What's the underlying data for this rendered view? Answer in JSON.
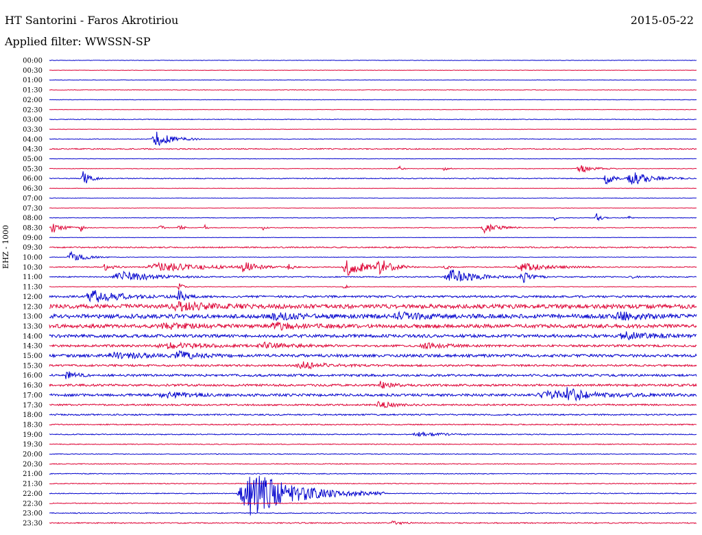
{
  "header": {
    "station": "HT Santorini - Faros Akrotiriou",
    "date": "2015-05-22",
    "filter": "Applied filter: WWSSN-SP"
  },
  "chart_data": {
    "type": "line",
    "title": "HT Santorini - Faros Akrotiriou",
    "ylabel": "EHZ - 1000",
    "colors": [
      "#0000cc",
      "#dd0033"
    ],
    "rows": [
      {
        "label": "00:00",
        "color": 0,
        "noise": 0.3,
        "events": []
      },
      {
        "label": "00:30",
        "color": 1,
        "noise": 0.3,
        "events": []
      },
      {
        "label": "01:00",
        "color": 0,
        "noise": 0.3,
        "events": []
      },
      {
        "label": "01:30",
        "color": 1,
        "noise": 0.4,
        "events": []
      },
      {
        "label": "02:00",
        "color": 0,
        "noise": 0.3,
        "events": []
      },
      {
        "label": "02:30",
        "color": 1,
        "noise": 0.3,
        "events": []
      },
      {
        "label": "03:00",
        "color": 0,
        "noise": 0.5,
        "events": []
      },
      {
        "label": "03:30",
        "color": 1,
        "noise": 0.3,
        "events": []
      },
      {
        "label": "04:00",
        "color": 0,
        "noise": 0.4,
        "events": [
          [
            0.165,
            0.025,
            11
          ]
        ]
      },
      {
        "label": "04:30",
        "color": 1,
        "noise": 0.8,
        "events": []
      },
      {
        "label": "05:00",
        "color": 0,
        "noise": 0.3,
        "events": []
      },
      {
        "label": "05:30",
        "color": 1,
        "noise": 0.4,
        "events": [
          [
            0.54,
            0.004,
            8
          ],
          [
            0.61,
            0.006,
            3
          ],
          [
            0.82,
            0.02,
            6
          ]
        ]
      },
      {
        "label": "06:00",
        "color": 0,
        "noise": 0.6,
        "events": [
          [
            0.052,
            0.01,
            11
          ],
          [
            0.86,
            0.01,
            9
          ],
          [
            0.9,
            0.03,
            10
          ]
        ]
      },
      {
        "label": "06:30",
        "color": 1,
        "noise": 0.3,
        "events": []
      },
      {
        "label": "07:00",
        "color": 0,
        "noise": 0.3,
        "events": []
      },
      {
        "label": "07:30",
        "color": 1,
        "noise": 0.3,
        "events": []
      },
      {
        "label": "08:00",
        "color": 0,
        "noise": 0.4,
        "events": [
          [
            0.78,
            0.003,
            5
          ],
          [
            0.845,
            0.006,
            9
          ],
          [
            0.895,
            0.003,
            5
          ]
        ]
      },
      {
        "label": "08:30",
        "color": 1,
        "noise": 0.5,
        "events": [
          [
            0.005,
            0.015,
            8
          ],
          [
            0.048,
            0.004,
            6
          ],
          [
            0.17,
            0.004,
            6
          ],
          [
            0.2,
            0.005,
            7
          ],
          [
            0.24,
            0.003,
            6
          ],
          [
            0.33,
            0.003,
            4
          ],
          [
            0.672,
            0.02,
            8
          ]
        ]
      },
      {
        "label": "09:00",
        "color": 0,
        "noise": 0.3,
        "events": []
      },
      {
        "label": "09:30",
        "color": 1,
        "noise": 0.9,
        "events": []
      },
      {
        "label": "10:00",
        "color": 0,
        "noise": 0.4,
        "events": [
          [
            0.033,
            0.02,
            8
          ]
        ]
      },
      {
        "label": "10:30",
        "color": 1,
        "noise": 0.7,
        "events": [
          [
            0.085,
            0.012,
            5
          ],
          [
            0.17,
            0.08,
            6
          ],
          [
            0.3,
            0.015,
            8
          ],
          [
            0.37,
            0.005,
            6
          ],
          [
            0.46,
            0.03,
            12
          ],
          [
            0.51,
            0.02,
            10
          ],
          [
            0.61,
            0.004,
            9
          ],
          [
            0.73,
            0.04,
            6
          ]
        ]
      },
      {
        "label": "11:00",
        "color": 0,
        "noise": 0.8,
        "events": [
          [
            0.11,
            0.045,
            8
          ],
          [
            0.62,
            0.035,
            11
          ],
          [
            0.73,
            0.015,
            9
          ],
          [
            0.9,
            0.004,
            5
          ]
        ]
      },
      {
        "label": "11:30",
        "color": 1,
        "noise": 0.4,
        "events": [
          [
            0.2,
            0.005,
            7
          ],
          [
            0.455,
            0.004,
            5
          ]
        ]
      },
      {
        "label": "12:00",
        "color": 0,
        "noise": 1.5,
        "events": [
          [
            0.065,
            0.045,
            9
          ],
          [
            0.2,
            0.01,
            10
          ]
        ]
      },
      {
        "label": "12:30",
        "color": 1,
        "noise": 3.0,
        "events": [
          [
            0.2,
            0.05,
            5
          ]
        ]
      },
      {
        "label": "13:00",
        "color": 0,
        "noise": 3.0,
        "events": [
          [
            0.35,
            0.03,
            5
          ],
          [
            0.54,
            0.03,
            5
          ],
          [
            0.88,
            0.03,
            5
          ]
        ]
      },
      {
        "label": "13:30",
        "color": 1,
        "noise": 2.6,
        "events": [
          [
            0.18,
            0.04,
            4
          ],
          [
            0.35,
            0.04,
            4
          ]
        ]
      },
      {
        "label": "14:00",
        "color": 0,
        "noise": 2.2,
        "events": [
          [
            0.89,
            0.04,
            5
          ]
        ]
      },
      {
        "label": "14:30",
        "color": 1,
        "noise": 1.6,
        "events": [
          [
            0.18,
            0.06,
            4
          ],
          [
            0.33,
            0.04,
            4
          ],
          [
            0.58,
            0.03,
            4
          ]
        ]
      },
      {
        "label": "15:00",
        "color": 0,
        "noise": 2.0,
        "events": [
          [
            0.1,
            0.05,
            4
          ],
          [
            0.2,
            0.03,
            5
          ]
        ]
      },
      {
        "label": "15:30",
        "color": 1,
        "noise": 1.4,
        "events": [
          [
            0.39,
            0.04,
            5
          ]
        ]
      },
      {
        "label": "16:00",
        "color": 0,
        "noise": 1.6,
        "events": [
          [
            0.025,
            0.015,
            6
          ]
        ]
      },
      {
        "label": "16:30",
        "color": 1,
        "noise": 1.6,
        "events": [
          [
            0.51,
            0.02,
            5
          ]
        ]
      },
      {
        "label": "17:00",
        "color": 0,
        "noise": 1.8,
        "events": [
          [
            0.18,
            0.04,
            4
          ],
          [
            0.77,
            0.08,
            5
          ],
          [
            0.8,
            0.02,
            7
          ]
        ]
      },
      {
        "label": "17:30",
        "color": 1,
        "noise": 1.2,
        "events": [
          [
            0.51,
            0.02,
            5
          ]
        ]
      },
      {
        "label": "18:00",
        "color": 0,
        "noise": 1.0,
        "events": []
      },
      {
        "label": "18:30",
        "color": 1,
        "noise": 0.8,
        "events": []
      },
      {
        "label": "19:00",
        "color": 0,
        "noise": 0.7,
        "events": [
          [
            0.57,
            0.03,
            4
          ]
        ]
      },
      {
        "label": "19:30",
        "color": 1,
        "noise": 0.6,
        "events": []
      },
      {
        "label": "20:00",
        "color": 0,
        "noise": 0.5,
        "events": []
      },
      {
        "label": "20:30",
        "color": 1,
        "noise": 0.6,
        "events": []
      },
      {
        "label": "21:00",
        "color": 0,
        "noise": 0.6,
        "events": []
      },
      {
        "label": "21:30",
        "color": 1,
        "noise": 0.6,
        "events": []
      },
      {
        "label": "22:00",
        "color": 0,
        "noise": 0.6,
        "events": [
          [
            0.31,
            0.07,
            32
          ]
        ]
      },
      {
        "label": "22:30",
        "color": 1,
        "noise": 0.6,
        "events": []
      },
      {
        "label": "23:00",
        "color": 0,
        "noise": 0.6,
        "events": []
      },
      {
        "label": "23:30",
        "color": 1,
        "noise": 0.8,
        "events": [
          [
            0.53,
            0.01,
            5
          ]
        ]
      }
    ]
  }
}
